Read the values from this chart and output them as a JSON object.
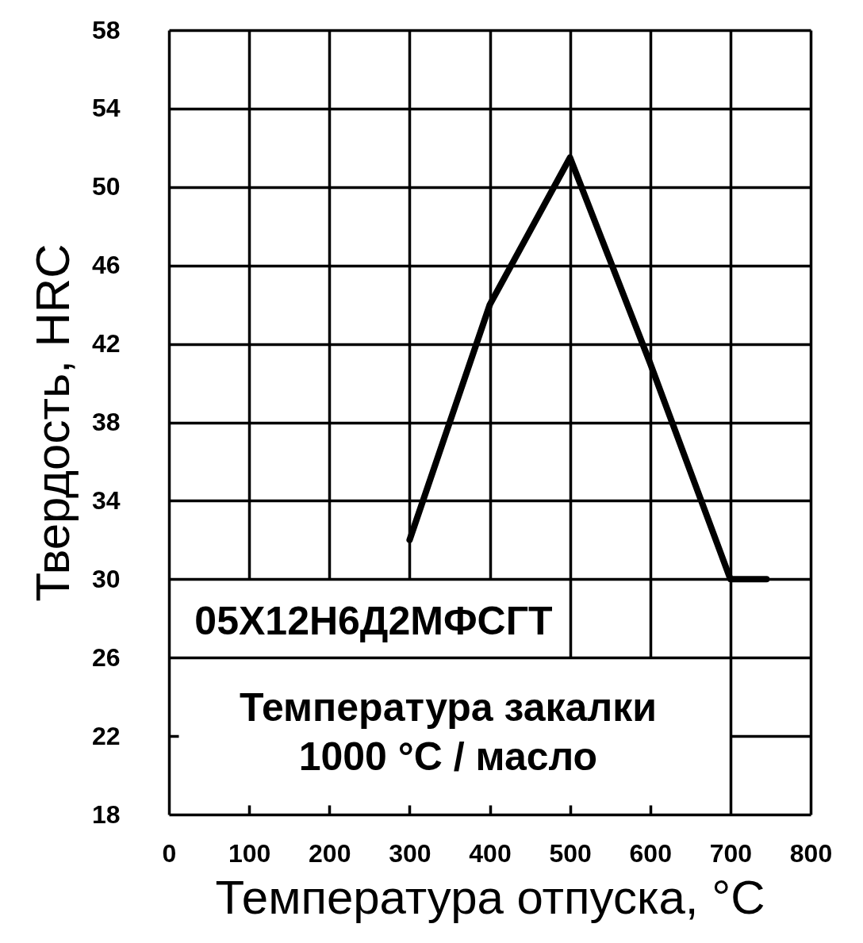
{
  "chart_data": {
    "type": "line",
    "xlabel": "Температура отпуска, °C",
    "ylabel": "Твердость, HRC",
    "annotations": [
      "05Х12Н6Д2МФСГТ",
      "Температура закалки\n1000 °C / масло"
    ],
    "x": [
      300,
      400,
      500,
      600,
      700,
      745
    ],
    "series": [
      {
        "color": "#000000",
        "values": [
          32,
          44,
          51.5,
          41,
          30,
          30
        ]
      }
    ],
    "xlim": [
      0,
      800
    ],
    "ylim": [
      18,
      58
    ],
    "xticks": [
      0,
      100,
      200,
      300,
      400,
      500,
      600,
      700,
      800
    ],
    "yticks": [
      18,
      22,
      26,
      30,
      34,
      38,
      42,
      46,
      50,
      54,
      58
    ],
    "grid": true
  }
}
